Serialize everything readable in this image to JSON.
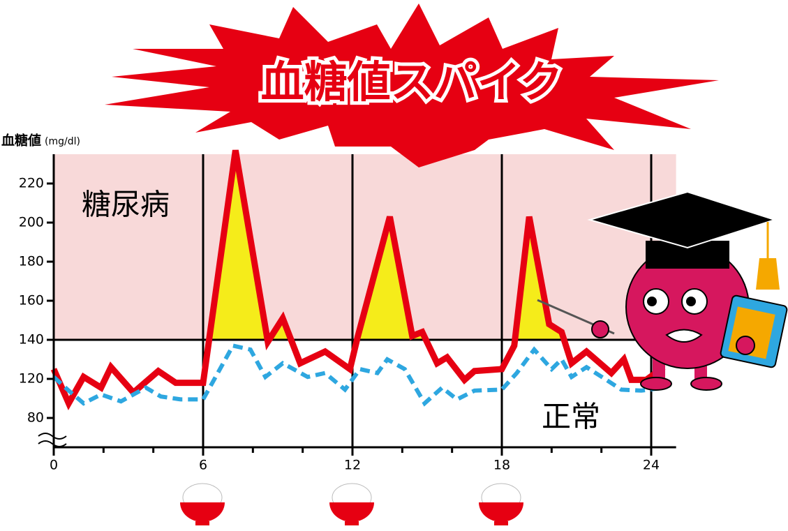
{
  "chart_data": {
    "type": "line",
    "title": "血糖値スパイク",
    "y_label": "血糖値",
    "y_unit": "(mg/dl)",
    "zone_label": "糖尿病",
    "normal_label": "正常",
    "zone_range": [
      140,
      235
    ],
    "zone_color": "#f8d9d9",
    "threshold": 140,
    "y_break": true,
    "xlim": [
      0,
      25
    ],
    "xticks": [
      0,
      6,
      12,
      18,
      24
    ],
    "x_minor_ticks": [
      2,
      4,
      8,
      10,
      14,
      16,
      20,
      22
    ],
    "ylim": [
      50,
      240
    ],
    "yticks": [
      80,
      120,
      140,
      160,
      180,
      200,
      220
    ],
    "spike_fill": "#f5ec1a",
    "series": [
      {
        "name": "糖尿病",
        "color": "#e60012",
        "style": "solid",
        "x": [
          0,
          0.6,
          1.2,
          1.9,
          2.3,
          3.2,
          4.2,
          4.9,
          6,
          7.3,
          8.6,
          9.2,
          9.9,
          10.9,
          11.9,
          12.2,
          13.5,
          14.4,
          14.8,
          15.4,
          15.8,
          16.5,
          16.9,
          18,
          18.5,
          19.1,
          19.9,
          20.4,
          20.8,
          21.4,
          22.4,
          22.9,
          23.2,
          23.8,
          24.5
        ],
        "values": [
          125,
          95,
          121,
          111,
          126,
          106,
          124,
          116,
          116,
          237,
          139,
          151,
          128,
          134,
          125,
          141,
          203,
          142,
          144,
          128,
          131,
          119,
          124,
          125,
          137,
          203,
          148,
          144,
          128,
          134,
          123,
          130,
          119,
          119,
          126
        ]
      },
      {
        "name": "正常",
        "color": "#2ea7e0",
        "style": "dashed",
        "x": [
          0,
          0.6,
          1.2,
          1.9,
          2.7,
          3.7,
          4.3,
          5.1,
          6,
          7.2,
          7.9,
          8.5,
          9.2,
          10.2,
          10.9,
          11.7,
          12.3,
          13,
          13.4,
          14.1,
          14.9,
          15.6,
          16.2,
          16.9,
          18,
          18.6,
          19.3,
          20,
          20.4,
          20.8,
          21.4,
          22.2,
          22.8,
          23.6,
          24.5
        ],
        "values": [
          121,
          108,
          95,
          104,
          97,
          111,
          102,
          99,
          99,
          137,
          135,
          121,
          128,
          121,
          123,
          109,
          125,
          123,
          130,
          125,
          95,
          111,
          99,
          108,
          109,
          123,
          135,
          125,
          130,
          121,
          126,
          119,
          109,
          108,
          111
        ]
      }
    ]
  }
}
